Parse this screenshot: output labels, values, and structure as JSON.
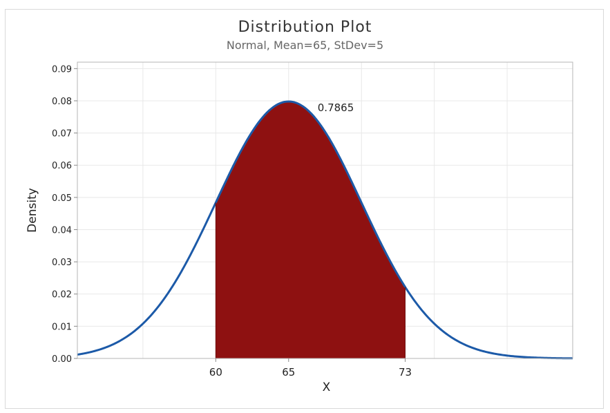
{
  "chart_data": {
    "type": "area",
    "title": "Distribution Plot",
    "subtitle": "Normal, Mean=65, StDev=5",
    "xlabel": "X",
    "ylabel": "Density",
    "distribution": {
      "name": "Normal",
      "mean": 65,
      "stdev": 5
    },
    "xlim": [
      50.5,
      84.5
    ],
    "ylim": [
      0,
      0.092
    ],
    "y_ticks": [
      "0.00",
      "0.01",
      "0.02",
      "0.03",
      "0.04",
      "0.05",
      "0.06",
      "0.07",
      "0.08",
      "0.09"
    ],
    "x_tick_labels": [
      "60",
      "65",
      "73"
    ],
    "shaded_region": {
      "from": 60,
      "to": 73,
      "probability_label": "0.7865"
    },
    "grid": true,
    "colors": {
      "curve": "#1c5aa8",
      "shade": "#8e1111",
      "grid": "#e8e8e8",
      "axis": "#b5b5b5"
    }
  }
}
